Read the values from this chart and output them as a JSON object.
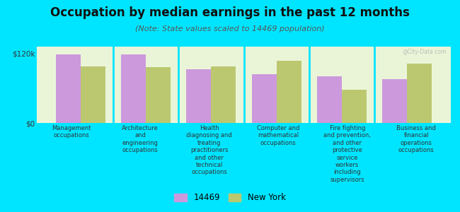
{
  "title": "Occupation by median earnings in the past 12 months",
  "subtitle": "(Note: State values scaled to 14469 population)",
  "background_color": "#00e5ff",
  "plot_bg_color": "#eaf5d8",
  "bar_color_14469": "#cc99dd",
  "bar_color_ny": "#bbc870",
  "categories": [
    "Management\noccupations",
    "Architecture\nand\nengineering\noccupations",
    "Health\ndiagnosing and\ntreating\npractitioners\nand other\ntechnical\noccupations",
    "Computer and\nmathematical\noccupations",
    "Fire fighting\nand prevention,\nand other\nprotective\nservice\nworkers\nincluding\nsupervisors",
    "Business and\nfinancial\noperations\noccupations"
  ],
  "values_14469": [
    118000,
    118000,
    93000,
    84000,
    81000,
    76000
  ],
  "values_ny": [
    98000,
    96000,
    98000,
    108000,
    58000,
    103000
  ],
  "ylim": [
    0,
    132000
  ],
  "yticks": [
    0,
    120000
  ],
  "ytick_labels": [
    "$0",
    "$120k"
  ],
  "legend_14469": "14469",
  "legend_ny": "New York",
  "watermark": "@City-Data.com",
  "title_fontsize": 12,
  "subtitle_fontsize": 8
}
